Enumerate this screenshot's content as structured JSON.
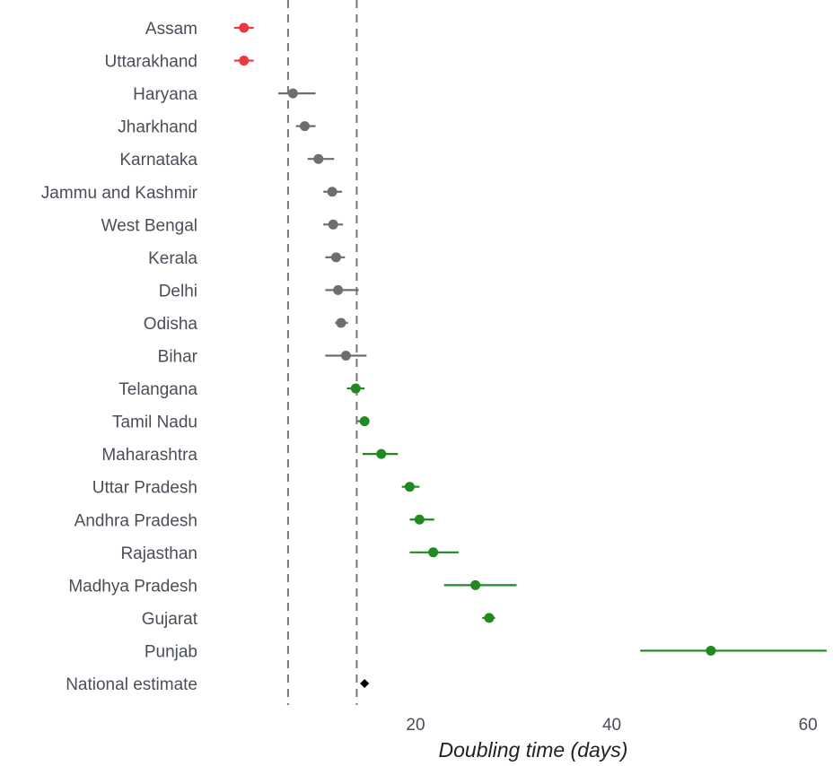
{
  "chart_data": {
    "type": "scatter",
    "title": "",
    "xlabel": "Doubling time (days)",
    "ylabel": "",
    "xlim": [
      -1.5,
      62
    ],
    "xticks": [
      20,
      40,
      60
    ],
    "reference_lines": [
      7,
      14
    ],
    "grid": false,
    "colors": {
      "short": "#e8393f",
      "middle": "#6e6e6e",
      "long": "#1f8a1f",
      "national": "#000000"
    },
    "points": [
      {
        "label": "Assam",
        "x": 2.5,
        "lo": 1.5,
        "hi": 3.5,
        "group": "short"
      },
      {
        "label": "Uttarakhand",
        "x": 2.5,
        "lo": 1.5,
        "hi": 3.5,
        "group": "short"
      },
      {
        "label": "Haryana",
        "x": 7.5,
        "lo": 6.0,
        "hi": 9.8,
        "group": "middle"
      },
      {
        "label": "Jharkhand",
        "x": 8.7,
        "lo": 7.8,
        "hi": 9.8,
        "group": "middle"
      },
      {
        "label": "Karnataka",
        "x": 10.1,
        "lo": 9.0,
        "hi": 11.7,
        "group": "middle"
      },
      {
        "label": "Jammu and Kashmir",
        "x": 11.5,
        "lo": 10.6,
        "hi": 12.5,
        "group": "middle"
      },
      {
        "label": "West Bengal",
        "x": 11.6,
        "lo": 10.6,
        "hi": 12.6,
        "group": "middle"
      },
      {
        "label": "Kerala",
        "x": 11.9,
        "lo": 10.8,
        "hi": 12.8,
        "group": "middle"
      },
      {
        "label": "Delhi",
        "x": 12.1,
        "lo": 10.8,
        "hi": 14.2,
        "group": "middle"
      },
      {
        "label": "Odisha",
        "x": 12.4,
        "lo": 11.8,
        "hi": 13.1,
        "group": "middle"
      },
      {
        "label": "Bihar",
        "x": 12.9,
        "lo": 10.8,
        "hi": 15.0,
        "group": "middle"
      },
      {
        "label": "Telangana",
        "x": 13.9,
        "lo": 13.0,
        "hi": 14.8,
        "group": "long"
      },
      {
        "label": "Tamil Nadu",
        "x": 14.8,
        "lo": 14.1,
        "hi": 15.3,
        "group": "long"
      },
      {
        "label": "Maharashtra",
        "x": 16.5,
        "lo": 14.6,
        "hi": 18.2,
        "group": "long"
      },
      {
        "label": "Uttar Pradesh",
        "x": 19.4,
        "lo": 18.6,
        "hi": 20.4,
        "group": "long"
      },
      {
        "label": "Andhra Pradesh",
        "x": 20.4,
        "lo": 19.4,
        "hi": 21.9,
        "group": "long"
      },
      {
        "label": "Rajasthan",
        "x": 21.8,
        "lo": 19.4,
        "hi": 24.4,
        "group": "long"
      },
      {
        "label": "Madhya Pradesh",
        "x": 26.1,
        "lo": 22.9,
        "hi": 30.3,
        "group": "long"
      },
      {
        "label": "Gujarat",
        "x": 27.5,
        "lo": 26.8,
        "hi": 28.1,
        "group": "long"
      },
      {
        "label": "Punjab",
        "x": 50.1,
        "lo": 42.9,
        "hi": 61.9,
        "group": "long"
      },
      {
        "label": "National estimate",
        "x": 14.8,
        "lo": 14.8,
        "hi": 14.8,
        "group": "national"
      }
    ]
  }
}
